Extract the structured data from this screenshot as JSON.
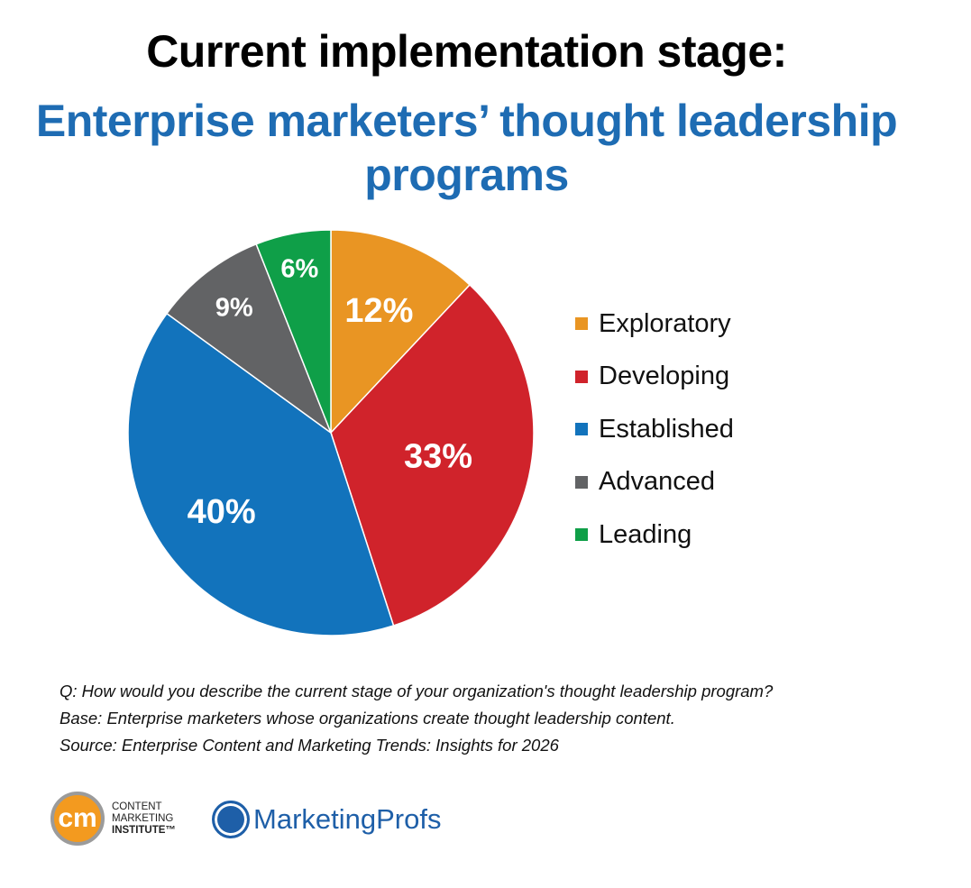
{
  "title": "Current implementation stage:",
  "subtitle": "Enterprise marketers’ thought leadership programs",
  "chart_data": {
    "type": "pie",
    "title": "Current implementation stage: Enterprise marketers’ thought leadership programs",
    "start_angle": "top, clockwise",
    "legend_position": "right",
    "categories": [
      "Exploratory",
      "Developing",
      "Established",
      "Advanced",
      "Leading"
    ],
    "values": [
      12,
      33,
      40,
      9,
      6
    ],
    "labels": [
      "12%",
      "33%",
      "40%",
      "9%",
      "6%"
    ],
    "colors": [
      "#E99523",
      "#D0232B",
      "#1273BC",
      "#626365",
      "#0F9F48"
    ]
  },
  "notes": {
    "question": "Q: How would you describe the current stage of your organization's thought leadership program?",
    "base": "Base: Enterprise marketers whose organizations create thought leadership content.",
    "source": "Source: Enterprise Content and Marketing Trends: Insights for 2026"
  },
  "logos": {
    "cmi_mark": "cm",
    "cmi_line1": "CONTENT",
    "cmi_line2": "MARKETING",
    "cmi_line3": "INSTITUTE™",
    "mp": "MarketingProfs"
  }
}
